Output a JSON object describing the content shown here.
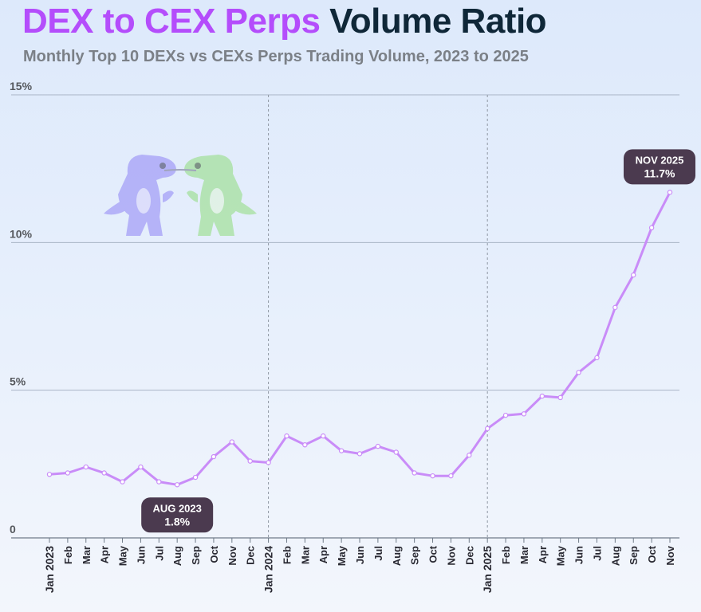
{
  "header": {
    "title_accent": "DEX to CEX Perps",
    "title_rest": "Volume Ratio",
    "subtitle": "Monthly Top 10 DEXs vs CEXs Perps Trading Volume, 2023 to 2025"
  },
  "colors": {
    "line": "#c98cf8",
    "title_accent": "#b44dfb",
    "title_dark": "#0f2738",
    "callout_bg": "#4b3a4f",
    "grid": "#a9b4c6"
  },
  "chart_data": {
    "type": "line",
    "title": "DEX to CEX Perps Volume Ratio",
    "subtitle": "Monthly Top 10 DEXs vs CEXs Perps Trading Volume, 2023 to 2025",
    "categories": [
      "Jan 2023",
      "Feb",
      "Mar",
      "Apr",
      "May",
      "Jun",
      "Jul",
      "Aug",
      "Sep",
      "Oct",
      "Nov",
      "Dec",
      "Jan 2024",
      "Feb",
      "Mar",
      "Apr",
      "May",
      "Jun",
      "Jul",
      "Aug",
      "Sep",
      "Oct",
      "Nov",
      "Dec",
      "Jan 2025",
      "Feb",
      "Mar",
      "Apr",
      "May",
      "Jun",
      "Jul",
      "Aug",
      "Sep",
      "Oct",
      "Nov"
    ],
    "year_boundaries": [
      "Jan 2024",
      "Jan 2025"
    ],
    "series": [
      {
        "values": [
          2.15,
          2.2,
          2.4,
          2.2,
          1.9,
          2.4,
          1.9,
          1.8,
          2.05,
          2.75,
          3.25,
          2.6,
          2.55,
          3.45,
          3.15,
          3.45,
          2.95,
          2.85,
          3.1,
          2.9,
          2.2,
          2.1,
          2.1,
          2.8,
          3.7,
          4.15,
          4.2,
          4.8,
          4.75,
          5.6,
          6.1,
          7.8,
          8.9,
          10.5,
          11.7
        ]
      }
    ],
    "yticks": [
      "0",
      "5%",
      "10%",
      "15%"
    ],
    "ylim": [
      0,
      15
    ],
    "grid": true,
    "annotations": [
      {
        "month": "AUG 2023",
        "value_label": "1.8%",
        "index": 7
      },
      {
        "month": "NOV 2025",
        "value_label": "11.7%",
        "index": 34
      }
    ]
  }
}
